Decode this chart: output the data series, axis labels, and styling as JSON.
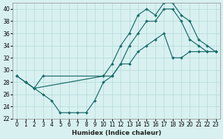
{
  "xlabel": "Humidex (Indice chaleur)",
  "bg_color": "#d8f0f0",
  "line_color": "#1a6b6b",
  "grid_color": "#b0d8d8",
  "xlim": [
    -0.5,
    23.5
  ],
  "ylim": [
    22,
    41
  ],
  "yticks": [
    22,
    24,
    26,
    28,
    30,
    32,
    34,
    36,
    38,
    40
  ],
  "xticks": [
    0,
    1,
    2,
    3,
    4,
    5,
    6,
    7,
    8,
    9,
    10,
    11,
    12,
    13,
    14,
    15,
    16,
    17,
    18,
    19,
    20,
    21,
    22,
    23
  ],
  "series": [
    {
      "x": [
        0,
        1,
        2,
        10,
        11,
        12,
        13,
        14,
        15,
        16,
        17,
        18,
        19,
        20,
        21,
        22,
        23
      ],
      "y": [
        29,
        28,
        27,
        29,
        31,
        34,
        36,
        39,
        40,
        39,
        41,
        41,
        39,
        38,
        35,
        34,
        33
      ]
    },
    {
      "x": [
        0,
        1,
        2,
        3,
        10,
        11,
        12,
        13,
        14,
        15,
        16,
        17,
        18,
        19,
        20,
        21,
        22,
        23
      ],
      "y": [
        29,
        28,
        27,
        29,
        29,
        29,
        31,
        34,
        36,
        38,
        38,
        40,
        40,
        38,
        35,
        34,
        33,
        33
      ]
    },
    {
      "x": [
        1,
        2,
        3,
        4,
        5,
        6,
        7,
        8,
        9,
        10,
        11,
        12,
        13,
        14,
        15,
        16,
        17,
        18,
        19,
        20,
        21,
        22,
        23
      ],
      "y": [
        28,
        27,
        26,
        25,
        23,
        23,
        23,
        23,
        25,
        28,
        29,
        31,
        31,
        33,
        34,
        35,
        36,
        32,
        32,
        33,
        33,
        33,
        33
      ]
    }
  ]
}
